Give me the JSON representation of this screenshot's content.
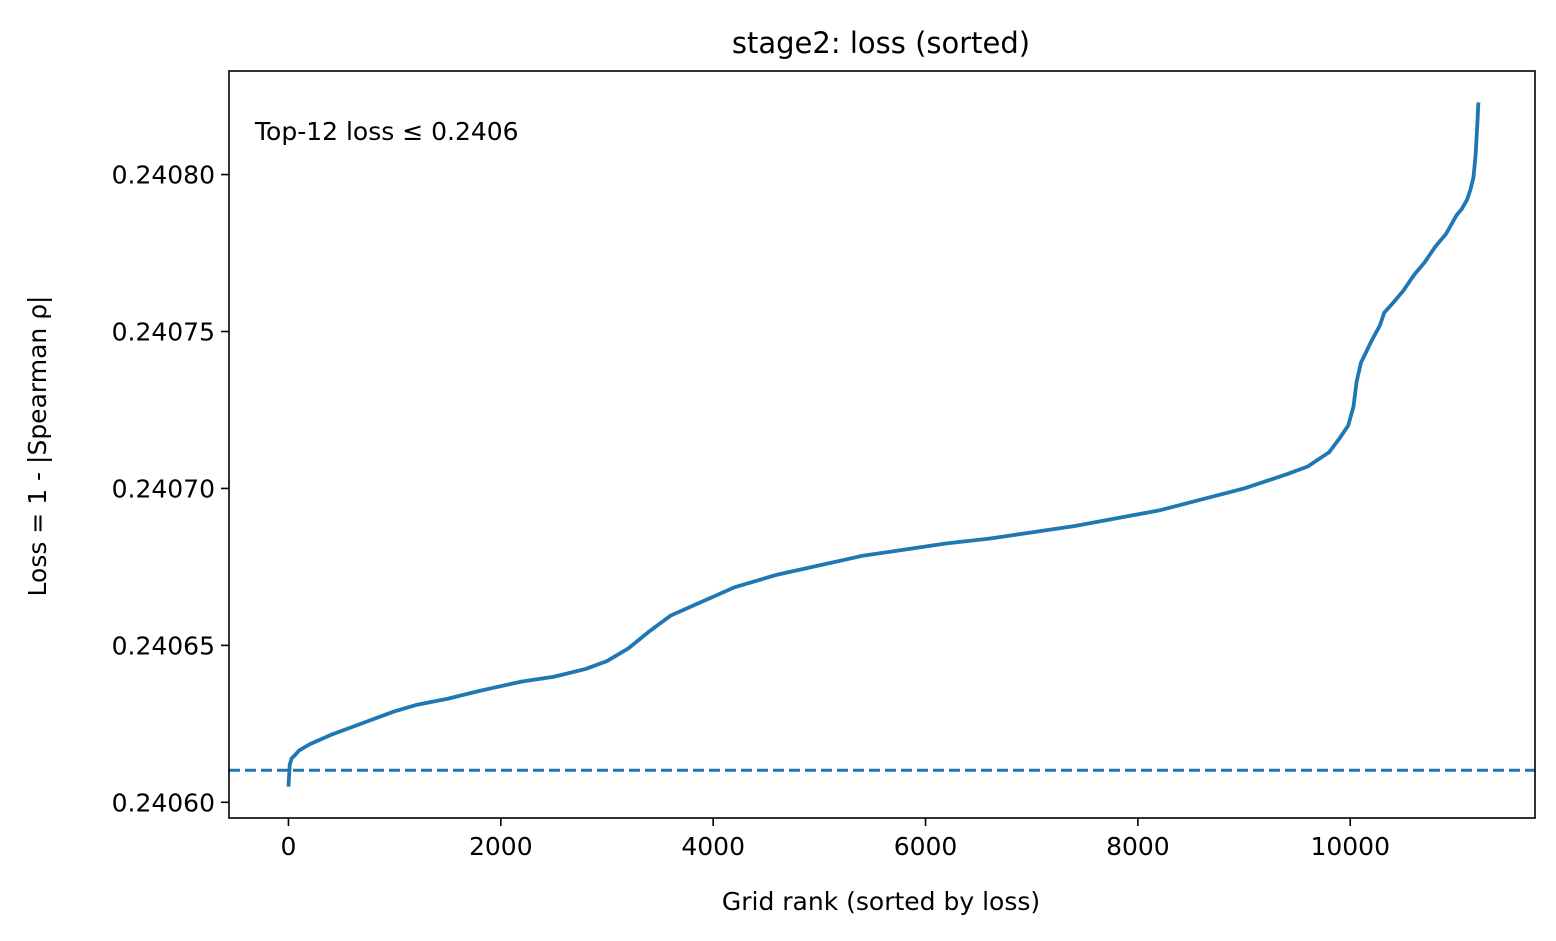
{
  "chart_data": {
    "type": "line",
    "title": "stage2: loss (sorted)",
    "xlabel": "Grid rank (sorted by loss)",
    "ylabel": "Loss = 1 - |Spearman ρ|",
    "xlim": [
      -560,
      11740
    ],
    "ylim": [
      0.240595,
      0.240833
    ],
    "x_ticks": [
      0,
      2000,
      4000,
      6000,
      8000,
      10000
    ],
    "x_tick_labels": [
      "0",
      "2000",
      "4000",
      "6000",
      "8000",
      "10000"
    ],
    "y_ticks": [
      0.2406,
      0.24065,
      0.2407,
      0.24075,
      0.2408
    ],
    "y_tick_labels": [
      "0.24060",
      "0.24065",
      "0.24070",
      "0.24075",
      "0.24080"
    ],
    "annotation": "Top-12 loss ≤ 0.2406",
    "threshold": 0.2406102,
    "grid": false,
    "line_color": "#1f77b4",
    "series": [
      {
        "x": [
          0,
          5,
          12,
          30,
          60,
          100,
          200,
          400,
          600,
          800,
          1000,
          1200,
          1500,
          1800,
          2000,
          2200,
          2500,
          2800,
          3000,
          3200,
          3400,
          3600,
          3800,
          4000,
          4200,
          4400,
          4600,
          5000,
          5400,
          5800,
          6200,
          6600,
          7000,
          7400,
          7800,
          8200,
          8600,
          9000,
          9400,
          9600,
          9800,
          9900,
          9980,
          10030,
          10060,
          10100,
          10200,
          10280,
          10320,
          10400,
          10500,
          10600,
          10700,
          10800,
          10900,
          11000,
          11050,
          11100,
          11130,
          11160,
          11180,
          11190,
          11200,
          11205,
          11208
        ],
        "values": [
          0.240605,
          0.240608,
          0.240612,
          0.240614,
          0.240615,
          0.2406165,
          0.2406185,
          0.2406215,
          0.240624,
          0.2406265,
          0.240629,
          0.240631,
          0.240633,
          0.2406355,
          0.240637,
          0.2406385,
          0.24064,
          0.2406425,
          0.240645,
          0.240649,
          0.2406545,
          0.2406595,
          0.2406625,
          0.2406655,
          0.2406685,
          0.2406705,
          0.2406725,
          0.2406755,
          0.2406785,
          0.2406805,
          0.2406825,
          0.240684,
          0.240686,
          0.240688,
          0.2406905,
          0.240693,
          0.2406965,
          0.2407,
          0.2407045,
          0.240707,
          0.2407115,
          0.240716,
          0.24072,
          0.240726,
          0.240734,
          0.24074,
          0.240747,
          0.240752,
          0.240756,
          0.240759,
          0.240763,
          0.240768,
          0.240772,
          0.240777,
          0.240781,
          0.240787,
          0.240789,
          0.240792,
          0.240795,
          0.240799,
          0.240806,
          0.240812,
          0.240818,
          0.240822,
          0.240823
        ]
      }
    ]
  }
}
